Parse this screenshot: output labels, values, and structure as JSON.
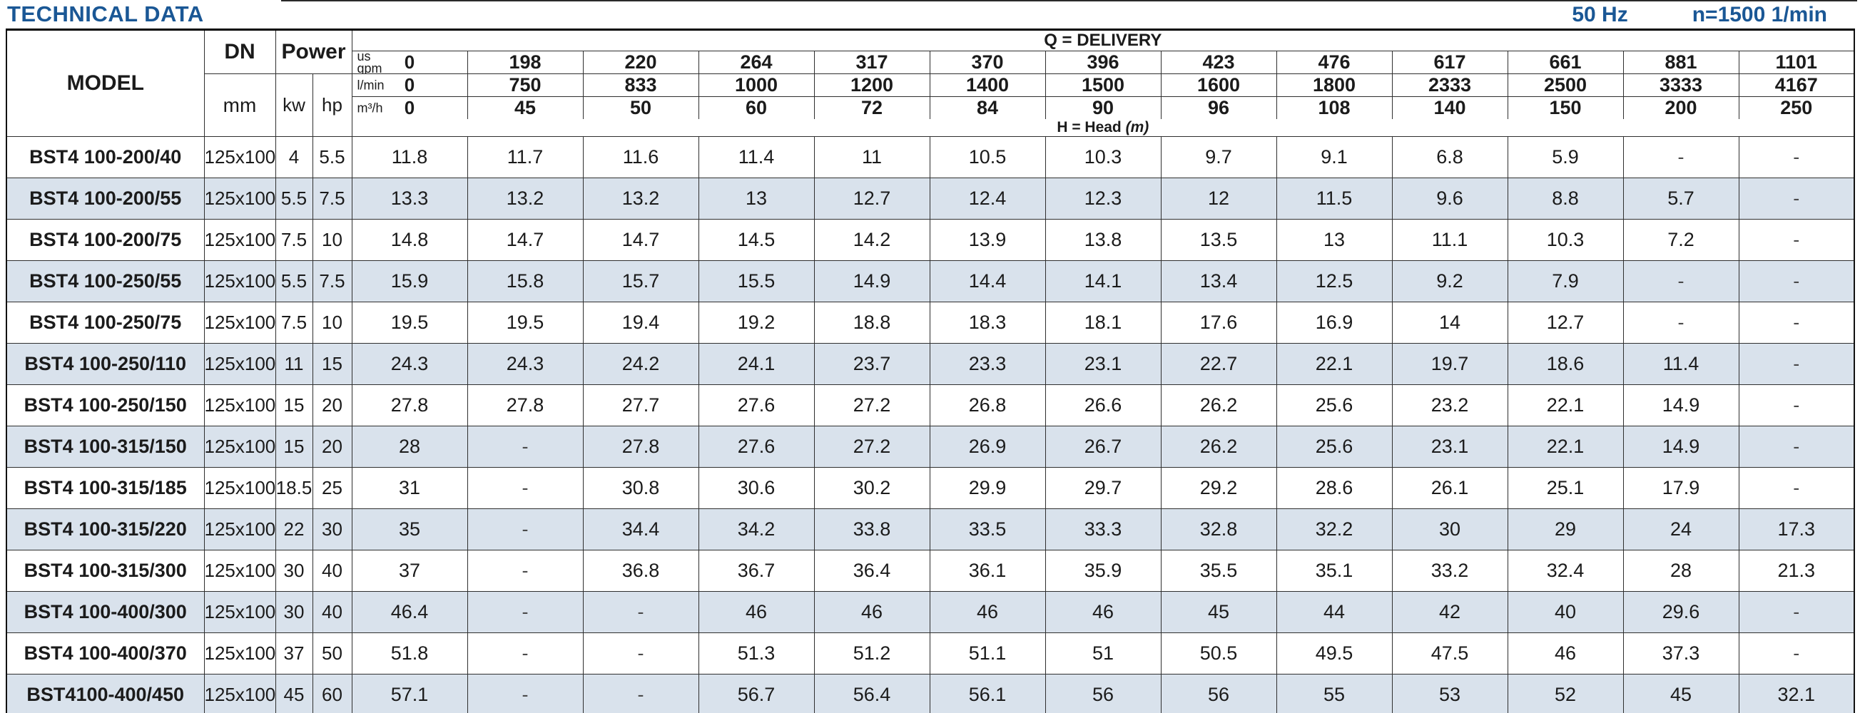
{
  "header": {
    "title": "TECHNICAL DATA",
    "frequency": "50 Hz",
    "speed": "n=1500 1/min"
  },
  "table": {
    "columns": {
      "model": "MODEL",
      "dn": "DN",
      "dn_unit": "mm",
      "power": "Power",
      "kw": "kw",
      "hp": "hp"
    },
    "delivery": {
      "title": "Q = DELIVERY",
      "head_label": "H = Head",
      "head_unit": "(m)",
      "unit_rows": [
        {
          "label": "us\ngpm",
          "zero": "0",
          "values": [
            "198",
            "220",
            "264",
            "317",
            "370",
            "396",
            "423",
            "476",
            "617",
            "661",
            "881",
            "1101"
          ]
        },
        {
          "label": "l/min",
          "zero": "0",
          "values": [
            "750",
            "833",
            "1000",
            "1200",
            "1400",
            "1500",
            "1600",
            "1800",
            "2333",
            "2500",
            "3333",
            "4167"
          ]
        },
        {
          "label": "m³/h",
          "zero": "0",
          "values": [
            "45",
            "50",
            "60",
            "72",
            "84",
            "90",
            "96",
            "108",
            "140",
            "150",
            "200",
            "250"
          ]
        }
      ]
    },
    "rows": [
      {
        "model": "BST4 100-200/40",
        "dn": "125x100",
        "kw": "4",
        "hp": "5.5",
        "heads": [
          "11.8",
          "11.7",
          "11.6",
          "11.4",
          "11",
          "10.5",
          "10.3",
          "9.7",
          "9.1",
          "6.8",
          "5.9",
          "-",
          "-"
        ]
      },
      {
        "model": "BST4 100-200/55",
        "dn": "125x100",
        "kw": "5.5",
        "hp": "7.5",
        "heads": [
          "13.3",
          "13.2",
          "13.2",
          "13",
          "12.7",
          "12.4",
          "12.3",
          "12",
          "11.5",
          "9.6",
          "8.8",
          "5.7",
          "-"
        ]
      },
      {
        "model": "BST4 100-200/75",
        "dn": "125x100",
        "kw": "7.5",
        "hp": "10",
        "heads": [
          "14.8",
          "14.7",
          "14.7",
          "14.5",
          "14.2",
          "13.9",
          "13.8",
          "13.5",
          "13",
          "11.1",
          "10.3",
          "7.2",
          "-"
        ]
      },
      {
        "model": "BST4 100-250/55",
        "dn": "125x100",
        "kw": "5.5",
        "hp": "7.5",
        "heads": [
          "15.9",
          "15.8",
          "15.7",
          "15.5",
          "14.9",
          "14.4",
          "14.1",
          "13.4",
          "12.5",
          "9.2",
          "7.9",
          "-",
          "-"
        ]
      },
      {
        "model": "BST4 100-250/75",
        "dn": "125x100",
        "kw": "7.5",
        "hp": "10",
        "heads": [
          "19.5",
          "19.5",
          "19.4",
          "19.2",
          "18.8",
          "18.3",
          "18.1",
          "17.6",
          "16.9",
          "14",
          "12.7",
          "-",
          "-"
        ]
      },
      {
        "model": "BST4 100-250/110",
        "dn": "125x100",
        "kw": "11",
        "hp": "15",
        "heads": [
          "24.3",
          "24.3",
          "24.2",
          "24.1",
          "23.7",
          "23.3",
          "23.1",
          "22.7",
          "22.1",
          "19.7",
          "18.6",
          "11.4",
          "-"
        ]
      },
      {
        "model": "BST4 100-250/150",
        "dn": "125x100",
        "kw": "15",
        "hp": "20",
        "heads": [
          "27.8",
          "27.8",
          "27.7",
          "27.6",
          "27.2",
          "26.8",
          "26.6",
          "26.2",
          "25.6",
          "23.2",
          "22.1",
          "14.9",
          "-"
        ]
      },
      {
        "model": "BST4 100-315/150",
        "dn": "125x100",
        "kw": "15",
        "hp": "20",
        "heads": [
          "28",
          "-",
          "27.8",
          "27.6",
          "27.2",
          "26.9",
          "26.7",
          "26.2",
          "25.6",
          "23.1",
          "22.1",
          "14.9",
          "-"
        ]
      },
      {
        "model": "BST4 100-315/185",
        "dn": "125x100",
        "kw": "18.5",
        "hp": "25",
        "heads": [
          "31",
          "-",
          "30.8",
          "30.6",
          "30.2",
          "29.9",
          "29.7",
          "29.2",
          "28.6",
          "26.1",
          "25.1",
          "17.9",
          "-"
        ]
      },
      {
        "model": "BST4 100-315/220",
        "dn": "125x100",
        "kw": "22",
        "hp": "30",
        "heads": [
          "35",
          "-",
          "34.4",
          "34.2",
          "33.8",
          "33.5",
          "33.3",
          "32.8",
          "32.2",
          "30",
          "29",
          "24",
          "17.3"
        ]
      },
      {
        "model": "BST4 100-315/300",
        "dn": "125x100",
        "kw": "30",
        "hp": "40",
        "heads": [
          "37",
          "-",
          "36.8",
          "36.7",
          "36.4",
          "36.1",
          "35.9",
          "35.5",
          "35.1",
          "33.2",
          "32.4",
          "28",
          "21.3"
        ]
      },
      {
        "model": "BST4 100-400/300",
        "dn": "125x100",
        "kw": "30",
        "hp": "40",
        "heads": [
          "46.4",
          "-",
          "-",
          "46",
          "46",
          "46",
          "46",
          "45",
          "44",
          "42",
          "40",
          "29.6",
          "-"
        ]
      },
      {
        "model": "BST4 100-400/370",
        "dn": "125x100",
        "kw": "37",
        "hp": "50",
        "heads": [
          "51.8",
          "-",
          "-",
          "51.3",
          "51.2",
          "51.1",
          "51",
          "50.5",
          "49.5",
          "47.5",
          "46",
          "37.3",
          "-"
        ]
      },
      {
        "model": "BST4100-400/450",
        "dn": "125x100",
        "kw": "45",
        "hp": "60",
        "heads": [
          "57.1",
          "-",
          "-",
          "56.7",
          "56.4",
          "56.1",
          "56",
          "56",
          "55",
          "53",
          "52",
          "45",
          "32.1"
        ]
      }
    ]
  },
  "colors": {
    "accent_blue": "#1a5795",
    "stripe": "#d9e2ec"
  }
}
